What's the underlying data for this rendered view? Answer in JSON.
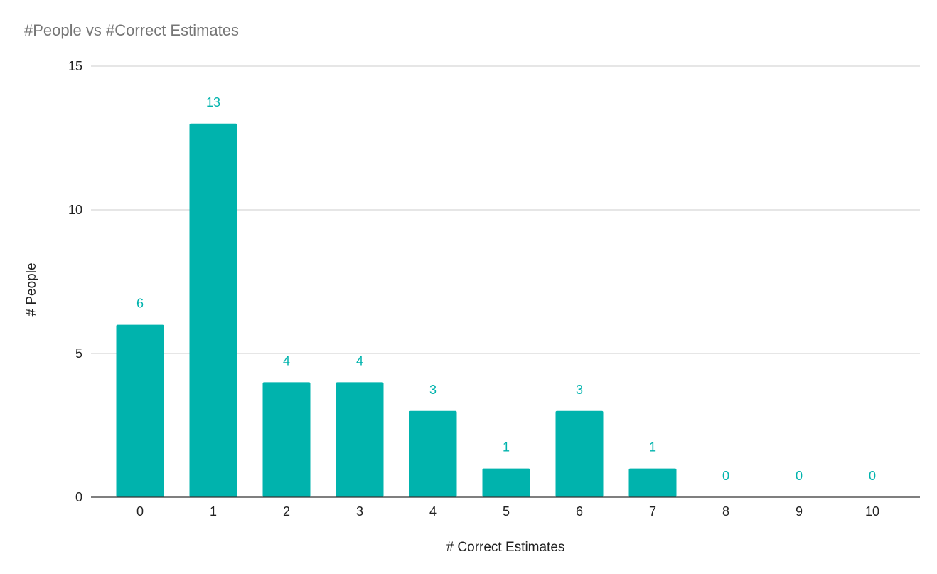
{
  "chart_data": {
    "type": "bar",
    "title": "#People vs #Correct Estimates",
    "xlabel": "# Correct Estimates",
    "ylabel": "# People",
    "categories": [
      "0",
      "1",
      "2",
      "3",
      "4",
      "5",
      "6",
      "7",
      "8",
      "9",
      "10"
    ],
    "values": [
      6,
      13,
      4,
      4,
      3,
      1,
      3,
      1,
      0,
      0,
      0
    ],
    "ylim": [
      0,
      15
    ],
    "yticks": [
      0,
      5,
      10,
      15
    ],
    "grid": true,
    "legend": "none",
    "bar_color": "#00b3ad",
    "data_labels": true
  }
}
